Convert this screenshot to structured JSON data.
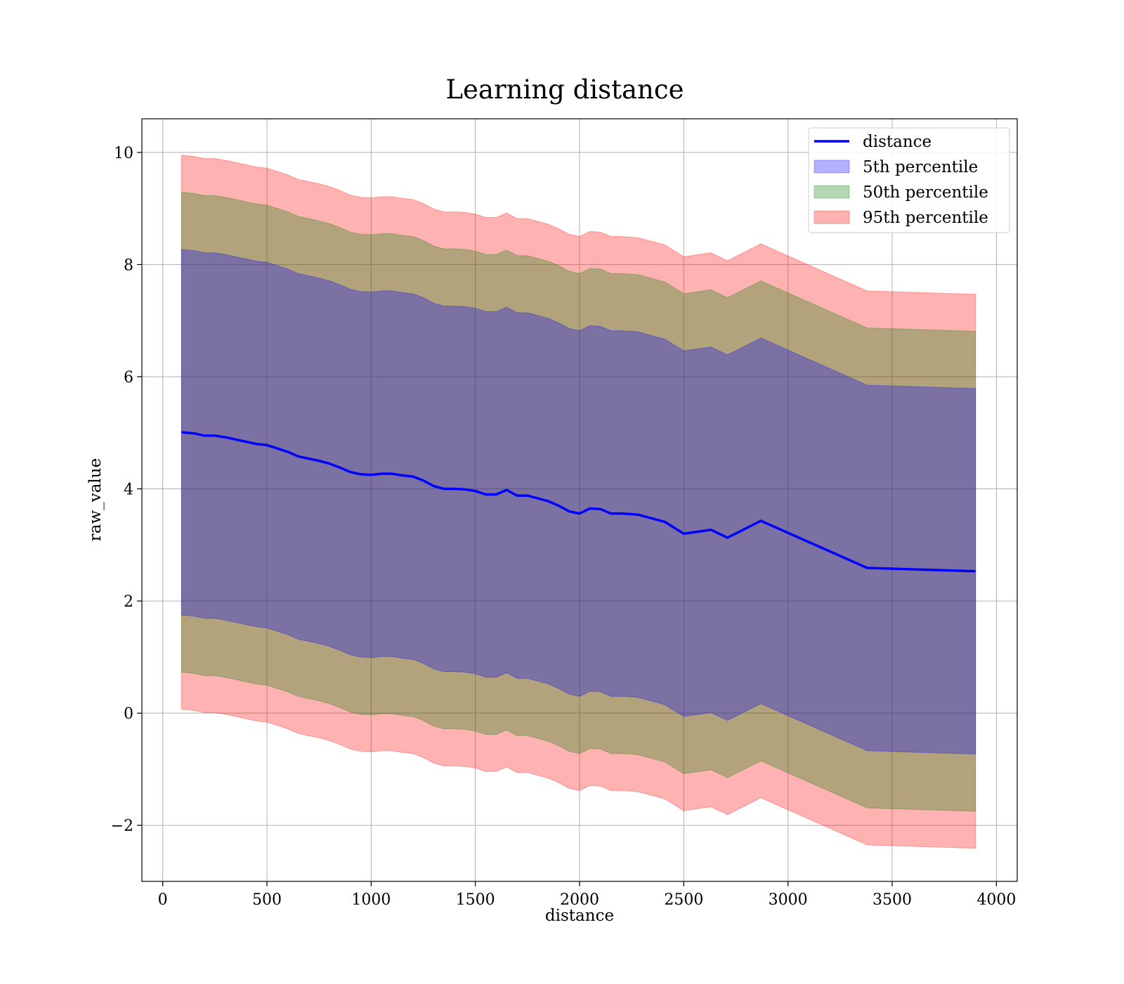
{
  "chart_data": {
    "type": "line",
    "title": "Learning distance",
    "xlabel": "distance",
    "ylabel": "raw_value",
    "xlim": [
      -100,
      4100
    ],
    "ylim": [
      -3.0,
      10.6
    ],
    "x_ticks": [
      0,
      500,
      1000,
      1500,
      2000,
      2500,
      3000,
      3500,
      4000
    ],
    "y_ticks": [
      -2,
      0,
      2,
      4,
      6,
      8,
      10
    ],
    "grid": true,
    "legend_position": "top-right",
    "x": [
      90,
      150,
      200,
      250,
      300,
      350,
      400,
      450,
      500,
      550,
      600,
      650,
      700,
      750,
      800,
      850,
      900,
      950,
      1000,
      1050,
      1100,
      1150,
      1200,
      1250,
      1300,
      1350,
      1400,
      1450,
      1500,
      1550,
      1600,
      1650,
      1700,
      1750,
      1800,
      1850,
      1900,
      1950,
      2000,
      2050,
      2100,
      2150,
      2200,
      2280,
      2410,
      2500,
      2630,
      2710,
      2870,
      3380,
      3900
    ],
    "series": [
      {
        "name": "distance",
        "type": "line",
        "color": "#0000ff",
        "values": [
          5.01,
          4.99,
          4.95,
          4.95,
          4.92,
          4.88,
          4.84,
          4.8,
          4.78,
          4.72,
          4.66,
          4.58,
          4.54,
          4.5,
          4.45,
          4.38,
          4.3,
          4.26,
          4.25,
          4.27,
          4.27,
          4.24,
          4.22,
          4.15,
          4.05,
          4.0,
          4.0,
          3.99,
          3.96,
          3.9,
          3.9,
          3.98,
          3.88,
          3.88,
          3.83,
          3.78,
          3.7,
          3.6,
          3.56,
          3.65,
          3.64,
          3.56,
          3.56,
          3.54,
          3.41,
          3.2,
          3.27,
          3.13,
          3.43,
          2.59,
          2.53
        ]
      },
      {
        "name": "5th percentile",
        "type": "band",
        "color": "#0000ff",
        "lower": [
          1.75,
          1.73,
          1.69,
          1.69,
          1.66,
          1.62,
          1.58,
          1.54,
          1.52,
          1.46,
          1.4,
          1.32,
          1.28,
          1.24,
          1.19,
          1.12,
          1.04,
          1.0,
          0.99,
          1.01,
          1.01,
          0.98,
          0.96,
          0.89,
          0.79,
          0.74,
          0.74,
          0.73,
          0.7,
          0.64,
          0.64,
          0.72,
          0.62,
          0.62,
          0.57,
          0.52,
          0.44,
          0.34,
          0.3,
          0.39,
          0.38,
          0.3,
          0.3,
          0.28,
          0.15,
          -0.06,
          0.01,
          -0.13,
          0.17,
          -0.67,
          -0.73
        ],
        "upper": [
          8.27,
          8.25,
          8.21,
          8.21,
          8.18,
          8.14,
          8.1,
          8.06,
          8.04,
          7.98,
          7.92,
          7.84,
          7.8,
          7.76,
          7.71,
          7.64,
          7.56,
          7.52,
          7.51,
          7.53,
          7.53,
          7.5,
          7.48,
          7.41,
          7.31,
          7.26,
          7.26,
          7.25,
          7.22,
          7.16,
          7.16,
          7.24,
          7.14,
          7.14,
          7.09,
          7.04,
          6.96,
          6.86,
          6.82,
          6.91,
          6.9,
          6.82,
          6.82,
          6.8,
          6.67,
          6.46,
          6.53,
          6.39,
          6.69,
          5.85,
          5.79
        ]
      },
      {
        "name": "50th percentile",
        "type": "band",
        "color": "#008000",
        "lower": [
          0.73,
          0.71,
          0.67,
          0.67,
          0.64,
          0.6,
          0.56,
          0.52,
          0.5,
          0.44,
          0.38,
          0.3,
          0.26,
          0.22,
          0.17,
          0.1,
          0.02,
          -0.02,
          -0.03,
          -0.01,
          -0.01,
          -0.04,
          -0.06,
          -0.13,
          -0.23,
          -0.28,
          -0.28,
          -0.29,
          -0.32,
          -0.38,
          -0.38,
          -0.3,
          -0.4,
          -0.4,
          -0.45,
          -0.5,
          -0.58,
          -0.68,
          -0.72,
          -0.63,
          -0.64,
          -0.72,
          -0.72,
          -0.74,
          -0.87,
          -1.08,
          -1.01,
          -1.15,
          -0.85,
          -1.69,
          -1.75
        ],
        "upper": [
          9.29,
          9.27,
          9.23,
          9.23,
          9.2,
          9.16,
          9.12,
          9.08,
          9.06,
          9.0,
          8.94,
          8.86,
          8.82,
          8.78,
          8.73,
          8.66,
          8.58,
          8.54,
          8.53,
          8.55,
          8.55,
          8.52,
          8.5,
          8.43,
          8.33,
          8.28,
          8.28,
          8.27,
          8.24,
          8.18,
          8.18,
          8.26,
          8.16,
          8.16,
          8.11,
          8.06,
          7.98,
          7.88,
          7.84,
          7.93,
          7.92,
          7.84,
          7.84,
          7.82,
          7.69,
          7.48,
          7.55,
          7.41,
          7.71,
          6.87,
          6.81
        ]
      },
      {
        "name": "95th percentile",
        "type": "band",
        "color": "#ff0000",
        "lower": [
          0.07,
          0.05,
          0.01,
          0.01,
          -0.02,
          -0.06,
          -0.1,
          -0.14,
          -0.16,
          -0.22,
          -0.28,
          -0.36,
          -0.4,
          -0.44,
          -0.49,
          -0.56,
          -0.64,
          -0.68,
          -0.69,
          -0.67,
          -0.67,
          -0.7,
          -0.72,
          -0.79,
          -0.89,
          -0.94,
          -0.94,
          -0.95,
          -0.98,
          -1.04,
          -1.04,
          -0.96,
          -1.06,
          -1.06,
          -1.11,
          -1.16,
          -1.24,
          -1.34,
          -1.38,
          -1.29,
          -1.3,
          -1.38,
          -1.38,
          -1.4,
          -1.53,
          -1.74,
          -1.67,
          -1.81,
          -1.51,
          -2.35,
          -2.41
        ],
        "upper": [
          9.95,
          9.93,
          9.89,
          9.89,
          9.86,
          9.82,
          9.78,
          9.74,
          9.72,
          9.66,
          9.6,
          9.52,
          9.48,
          9.44,
          9.39,
          9.32,
          9.24,
          9.2,
          9.19,
          9.21,
          9.21,
          9.18,
          9.16,
          9.09,
          8.99,
          8.94,
          8.94,
          8.93,
          8.9,
          8.84,
          8.84,
          8.92,
          8.82,
          8.82,
          8.77,
          8.72,
          8.64,
          8.54,
          8.5,
          8.59,
          8.58,
          8.5,
          8.5,
          8.48,
          8.35,
          8.14,
          8.21,
          8.07,
          8.37,
          7.53,
          7.47
        ]
      }
    ]
  }
}
